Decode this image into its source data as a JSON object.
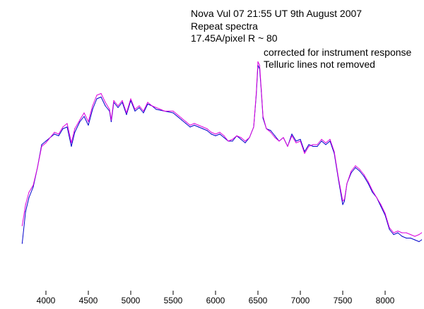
{
  "chart_data": {
    "type": "line",
    "title": "",
    "xlabel": "",
    "ylabel": "",
    "xlim": [
      3700,
      8450
    ],
    "ylim": [
      0,
      1.15
    ],
    "grid": false,
    "legend": "none",
    "xticks": [
      4000,
      4500,
      5000,
      5500,
      6000,
      6500,
      7000,
      7500,
      8000
    ],
    "xtick_labels": [
      "4000",
      "4500",
      "5000",
      "5500",
      "6000",
      "6500",
      "7000",
      "7500",
      "8000"
    ],
    "annotations": [
      "Nova Vul 07     21:55 UT 9th August 2007",
      "Repeat spectra",
      "17.45A/pixel  R ~ 80",
      "corrected for instrument response",
      "Telluric lines not removed"
    ],
    "series": [
      {
        "color": "#0000cc",
        "x": [
          3720,
          3760,
          3800,
          3850,
          3900,
          3950,
          4000,
          4050,
          4100,
          4150,
          4200,
          4250,
          4300,
          4340,
          4400,
          4450,
          4500,
          4550,
          4600,
          4650,
          4700,
          4750,
          4770,
          4800,
          4850,
          4900,
          4950,
          5000,
          5050,
          5100,
          5150,
          5200,
          5250,
          5300,
          5400,
          5500,
          5600,
          5650,
          5700,
          5750,
          5800,
          5850,
          5900,
          5950,
          6000,
          6050,
          6100,
          6150,
          6200,
          6250,
          6300,
          6350,
          6400,
          6450,
          6480,
          6500,
          6520,
          6540,
          6560,
          6600,
          6650,
          6700,
          6750,
          6800,
          6850,
          6900,
          6950,
          7000,
          7050,
          7100,
          7150,
          7200,
          7250,
          7300,
          7350,
          7400,
          7450,
          7500,
          7520,
          7550,
          7600,
          7650,
          7700,
          7750,
          7800,
          7850,
          7900,
          7950,
          8000,
          8050,
          8100,
          8150,
          8200,
          8250,
          8300,
          8350,
          8400,
          8430
        ],
        "y": [
          0.04,
          0.22,
          0.3,
          0.36,
          0.47,
          0.6,
          0.62,
          0.64,
          0.66,
          0.65,
          0.69,
          0.7,
          0.59,
          0.67,
          0.73,
          0.76,
          0.71,
          0.8,
          0.86,
          0.87,
          0.82,
          0.79,
          0.73,
          0.84,
          0.81,
          0.84,
          0.77,
          0.85,
          0.79,
          0.81,
          0.78,
          0.83,
          0.82,
          0.8,
          0.79,
          0.78,
          0.74,
          0.72,
          0.7,
          0.71,
          0.7,
          0.69,
          0.68,
          0.66,
          0.65,
          0.66,
          0.64,
          0.62,
          0.62,
          0.65,
          0.63,
          0.61,
          0.64,
          0.7,
          0.88,
          1.05,
          1.03,
          0.9,
          0.75,
          0.69,
          0.68,
          0.65,
          0.62,
          0.64,
          0.59,
          0.66,
          0.62,
          0.63,
          0.56,
          0.6,
          0.59,
          0.59,
          0.62,
          0.6,
          0.62,
          0.55,
          0.4,
          0.26,
          0.28,
          0.38,
          0.44,
          0.47,
          0.45,
          0.42,
          0.38,
          0.33,
          0.3,
          0.25,
          0.2,
          0.12,
          0.09,
          0.1,
          0.08,
          0.07,
          0.07,
          0.06,
          0.05,
          0.06
        ]
      },
      {
        "color": "#dd00dd",
        "x": [
          3720,
          3760,
          3800,
          3850,
          3900,
          3950,
          4000,
          4050,
          4100,
          4150,
          4200,
          4250,
          4300,
          4340,
          4400,
          4450,
          4500,
          4550,
          4600,
          4650,
          4700,
          4750,
          4770,
          4800,
          4850,
          4900,
          4950,
          5000,
          5050,
          5100,
          5150,
          5200,
          5250,
          5300,
          5400,
          5500,
          5600,
          5650,
          5700,
          5750,
          5800,
          5850,
          5900,
          5950,
          6000,
          6050,
          6100,
          6150,
          6200,
          6250,
          6300,
          6350,
          6400,
          6450,
          6480,
          6500,
          6520,
          6540,
          6560,
          6600,
          6650,
          6700,
          6750,
          6800,
          6850,
          6900,
          6950,
          7000,
          7050,
          7100,
          7150,
          7200,
          7250,
          7300,
          7350,
          7400,
          7450,
          7500,
          7520,
          7550,
          7600,
          7650,
          7700,
          7750,
          7800,
          7850,
          7900,
          7950,
          8000,
          8050,
          8100,
          8150,
          8200,
          8250,
          8300,
          8350,
          8400,
          8430
        ],
        "y": [
          0.14,
          0.26,
          0.33,
          0.37,
          0.47,
          0.59,
          0.61,
          0.64,
          0.67,
          0.66,
          0.7,
          0.72,
          0.61,
          0.69,
          0.74,
          0.78,
          0.73,
          0.82,
          0.88,
          0.89,
          0.84,
          0.8,
          0.74,
          0.85,
          0.82,
          0.85,
          0.78,
          0.86,
          0.8,
          0.82,
          0.79,
          0.84,
          0.82,
          0.81,
          0.79,
          0.79,
          0.75,
          0.73,
          0.71,
          0.72,
          0.71,
          0.7,
          0.69,
          0.67,
          0.66,
          0.67,
          0.65,
          0.62,
          0.63,
          0.65,
          0.64,
          0.62,
          0.64,
          0.7,
          0.89,
          1.07,
          1.05,
          0.91,
          0.76,
          0.69,
          0.67,
          0.64,
          0.62,
          0.64,
          0.59,
          0.65,
          0.61,
          0.62,
          0.55,
          0.59,
          0.6,
          0.6,
          0.63,
          0.61,
          0.63,
          0.56,
          0.41,
          0.28,
          0.29,
          0.38,
          0.45,
          0.48,
          0.46,
          0.43,
          0.39,
          0.34,
          0.3,
          0.26,
          0.21,
          0.13,
          0.1,
          0.11,
          0.1,
          0.1,
          0.09,
          0.08,
          0.09,
          0.1
        ]
      }
    ]
  }
}
